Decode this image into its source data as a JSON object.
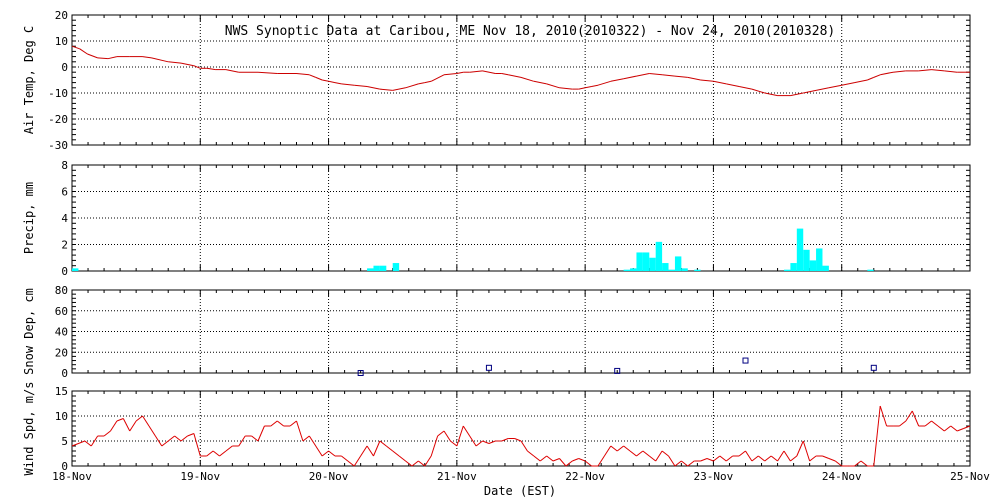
{
  "title": "NWS Synoptic Data at Caribou, ME   Nov 18, 2010(2010322) - Nov 24, 2010(2010328)",
  "xlabel": "Date (EST)",
  "x_ticks": [
    "18-Nov",
    "19-Nov",
    "20-Nov",
    "21-Nov",
    "22-Nov",
    "23-Nov",
    "24-Nov",
    "25-Nov"
  ],
  "colors": {
    "temp": "#cc0000",
    "precip": "#00ffff",
    "snow": "#000080",
    "wind": "#dd0000",
    "axis": "#000000",
    "grid": "#000000"
  },
  "chart_data": [
    {
      "id": "temp",
      "type": "line",
      "ylabel": "Air Temp, Deg C",
      "ylim": [
        -30,
        20
      ],
      "yticks": [
        20,
        10,
        0,
        -10,
        -20,
        -30
      ],
      "xlim": [
        0,
        7
      ],
      "grid": true,
      "series": [
        {
          "x": [
            0,
            0.06,
            0.12,
            0.2,
            0.28,
            0.35,
            0.45,
            0.55,
            0.62,
            0.75,
            0.85,
            0.95,
            1.0,
            1.05,
            1.12,
            1.2,
            1.3,
            1.45,
            1.6,
            1.75,
            1.85,
            1.9,
            1.95,
            2.0,
            2.05,
            2.1,
            2.2,
            2.3,
            2.4,
            2.5,
            2.6,
            2.7,
            2.75,
            2.8,
            2.9,
            3.0,
            3.05,
            3.1,
            3.2,
            3.3,
            3.35,
            3.4,
            3.5,
            3.6,
            3.7,
            3.8,
            3.9,
            3.95,
            4.0,
            4.05,
            4.1,
            4.2,
            4.3,
            4.4,
            4.5,
            4.6,
            4.7,
            4.8,
            4.9,
            5.0,
            5.1,
            5.2,
            5.3,
            5.4,
            5.5,
            5.6,
            5.7,
            5.8,
            5.9,
            6.0,
            6.1,
            6.2,
            6.25,
            6.3,
            6.4,
            6.5,
            6.6,
            6.7,
            6.8,
            6.9,
            7.0
          ],
          "y": [
            8,
            7,
            5,
            3.5,
            3.2,
            4,
            4,
            4,
            3.5,
            2,
            1.5,
            0.5,
            -0.5,
            -0.5,
            -1,
            -1,
            -2,
            -2,
            -2.5,
            -2.5,
            -3,
            -4,
            -5,
            -5.5,
            -6,
            -6.5,
            -7,
            -7.5,
            -8.5,
            -9,
            -8,
            -6.5,
            -6,
            -5.5,
            -3,
            -2.5,
            -2,
            -2,
            -1.5,
            -2.5,
            -2.5,
            -3,
            -4,
            -5.5,
            -6.5,
            -8,
            -8.5,
            -8.5,
            -8,
            -7.5,
            -7,
            -5.5,
            -4.5,
            -3.5,
            -2.5,
            -3,
            -3.5,
            -4,
            -5,
            -5.5,
            -6.5,
            -7.5,
            -8.5,
            -10,
            -11,
            -11,
            -10,
            -9,
            -8,
            -7,
            -6,
            -5,
            -4,
            -3,
            -2,
            -1.5,
            -1.5,
            -1,
            -1.5,
            -2,
            -2
          ]
        }
      ]
    },
    {
      "id": "precip",
      "type": "bar",
      "ylabel": "Precip, mm",
      "ylim": [
        0,
        8
      ],
      "yticks": [
        8,
        6,
        4,
        2,
        0
      ],
      "grid": true,
      "series": [
        {
          "x": [
            0.0,
            2.3,
            2.35,
            2.4,
            2.5,
            4.3,
            4.35,
            4.4,
            4.45,
            4.5,
            4.55,
            4.6,
            4.65,
            4.7,
            4.75,
            4.85,
            5.55,
            5.6,
            5.65,
            5.7,
            5.75,
            5.8,
            5.85,
            6.2
          ],
          "values": [
            0.2,
            0.2,
            0.4,
            0.4,
            0.6,
            0.1,
            0.2,
            1.4,
            1.4,
            1.0,
            2.2,
            0.6,
            0.1,
            1.1,
            0.2,
            0.1,
            0.1,
            0.6,
            3.2,
            1.6,
            0.8,
            1.7,
            0.4,
            0.1
          ]
        }
      ]
    },
    {
      "id": "snow",
      "type": "scatter",
      "ylabel": "Snow Dep, cm",
      "ylim": [
        0,
        80
      ],
      "yticks": [
        80,
        60,
        40,
        20,
        0
      ],
      "grid": true,
      "series": [
        {
          "x": [
            2.25,
            3.25,
            4.25,
            5.25,
            6.25
          ],
          "y": [
            0,
            5,
            2,
            12,
            5
          ]
        }
      ]
    },
    {
      "id": "wind",
      "type": "line",
      "ylabel": "Wind Spd, m/s",
      "ylim": [
        0,
        15
      ],
      "yticks": [
        15,
        10,
        5,
        0
      ],
      "grid": true,
      "series": [
        {
          "x": [
            0,
            0.1,
            0.15,
            0.2,
            0.25,
            0.3,
            0.35,
            0.4,
            0.45,
            0.5,
            0.55,
            0.6,
            0.65,
            0.7,
            0.75,
            0.8,
            0.85,
            0.9,
            0.95,
            1.0,
            1.05,
            1.1,
            1.15,
            1.2,
            1.25,
            1.3,
            1.35,
            1.4,
            1.45,
            1.5,
            1.55,
            1.6,
            1.65,
            1.7,
            1.75,
            1.8,
            1.85,
            1.9,
            1.95,
            2.0,
            2.05,
            2.1,
            2.15,
            2.2,
            2.25,
            2.3,
            2.35,
            2.4,
            2.45,
            2.5,
            2.55,
            2.6,
            2.65,
            2.7,
            2.75,
            2.8,
            2.85,
            2.9,
            2.95,
            3.0,
            3.05,
            3.1,
            3.15,
            3.2,
            3.25,
            3.3,
            3.35,
            3.4,
            3.45,
            3.5,
            3.55,
            3.6,
            3.65,
            3.7,
            3.75,
            3.8,
            3.85,
            3.9,
            3.95,
            4.0,
            4.05,
            4.1,
            4.15,
            4.2,
            4.25,
            4.3,
            4.35,
            4.4,
            4.45,
            4.5,
            4.55,
            4.6,
            4.65,
            4.7,
            4.75,
            4.8,
            4.85,
            4.9,
            4.95,
            5.0,
            5.05,
            5.1,
            5.15,
            5.2,
            5.25,
            5.3,
            5.35,
            5.4,
            5.45,
            5.5,
            5.55,
            5.6,
            5.65,
            5.7,
            5.75,
            5.8,
            5.85,
            5.9,
            5.95,
            6.0,
            6.05,
            6.1,
            6.15,
            6.2,
            6.25,
            6.3,
            6.35,
            6.4,
            6.45,
            6.5,
            6.55,
            6.6,
            6.65,
            6.7,
            6.75,
            6.8,
            6.85,
            6.9,
            6.95,
            7.0
          ],
          "y": [
            4,
            5,
            4,
            6,
            6,
            7,
            9,
            9.5,
            7,
            9,
            10,
            8,
            6,
            4,
            5,
            6,
            5,
            6,
            6.5,
            2,
            2,
            3,
            2,
            3,
            4,
            4,
            6,
            6,
            5,
            8,
            8,
            9,
            8,
            8,
            9,
            5,
            6,
            4,
            2,
            3,
            2,
            2,
            1,
            0,
            2,
            4,
            2,
            5,
            4,
            3,
            2,
            1,
            0,
            1,
            0,
            2,
            6,
            7,
            5,
            4,
            8,
            6,
            4,
            5,
            4.5,
            5,
            5,
            5.5,
            5.5,
            5,
            3,
            2,
            1,
            2,
            1,
            1.5,
            0,
            1,
            1.5,
            1,
            0,
            0,
            2,
            4,
            3,
            4,
            3,
            2,
            3,
            2,
            1,
            3,
            2,
            0,
            1,
            0,
            1,
            1,
            1.5,
            1,
            2,
            1,
            2,
            2,
            3,
            1,
            2,
            1,
            2,
            1,
            3,
            1,
            2,
            5,
            1,
            2,
            2,
            1.5,
            1,
            0,
            0,
            0,
            1,
            0,
            0,
            12,
            8,
            8,
            8,
            9,
            11,
            8,
            8,
            9,
            8,
            7,
            8,
            7,
            7.5,
            8
          ]
        }
      ]
    }
  ]
}
